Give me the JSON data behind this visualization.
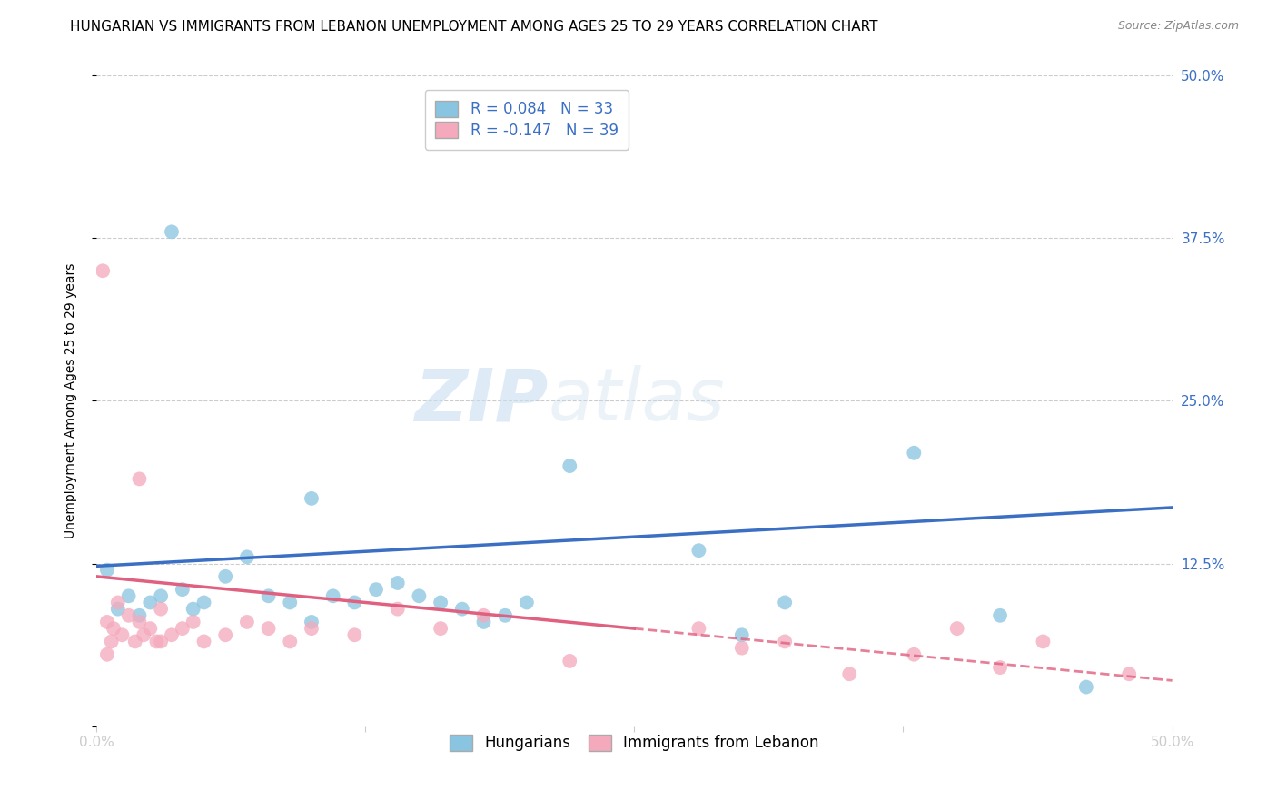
{
  "title": "HUNGARIAN VS IMMIGRANTS FROM LEBANON UNEMPLOYMENT AMONG AGES 25 TO 29 YEARS CORRELATION CHART",
  "source": "Source: ZipAtlas.com",
  "ylabel": "Unemployment Among Ages 25 to 29 years",
  "xlim": [
    0,
    0.5
  ],
  "ylim": [
    0,
    0.5
  ],
  "blue_R": 0.084,
  "blue_N": 33,
  "pink_R": -0.147,
  "pink_N": 39,
  "blue_color": "#89c4e1",
  "pink_color": "#f4a9bc",
  "blue_line_color": "#3a6fc4",
  "pink_line_color": "#e06080",
  "background_color": "#ffffff",
  "legend_label_blue": "Hungarians",
  "legend_label_pink": "Immigrants from Lebanon",
  "blue_x": [
    0.005,
    0.01,
    0.015,
    0.02,
    0.025,
    0.03,
    0.035,
    0.04,
    0.045,
    0.05,
    0.06,
    0.07,
    0.08,
    0.09,
    0.1,
    0.11,
    0.12,
    0.13,
    0.14,
    0.15,
    0.16,
    0.17,
    0.18,
    0.19,
    0.2,
    0.22,
    0.28,
    0.3,
    0.32,
    0.38,
    0.42,
    0.46,
    0.1
  ],
  "blue_y": [
    0.12,
    0.09,
    0.1,
    0.085,
    0.095,
    0.1,
    0.38,
    0.105,
    0.09,
    0.095,
    0.115,
    0.13,
    0.1,
    0.095,
    0.08,
    0.1,
    0.095,
    0.105,
    0.11,
    0.1,
    0.095,
    0.09,
    0.08,
    0.085,
    0.095,
    0.2,
    0.135,
    0.07,
    0.095,
    0.21,
    0.085,
    0.03,
    0.175
  ],
  "pink_x": [
    0.003,
    0.005,
    0.007,
    0.008,
    0.01,
    0.012,
    0.015,
    0.018,
    0.02,
    0.022,
    0.025,
    0.028,
    0.03,
    0.035,
    0.04,
    0.045,
    0.05,
    0.06,
    0.07,
    0.08,
    0.09,
    0.1,
    0.12,
    0.14,
    0.16,
    0.18,
    0.22,
    0.28,
    0.3,
    0.32,
    0.35,
    0.38,
    0.4,
    0.42,
    0.44,
    0.48,
    0.02,
    0.03,
    0.005
  ],
  "pink_y": [
    0.35,
    0.08,
    0.065,
    0.075,
    0.095,
    0.07,
    0.085,
    0.065,
    0.08,
    0.07,
    0.075,
    0.065,
    0.09,
    0.07,
    0.075,
    0.08,
    0.065,
    0.07,
    0.08,
    0.075,
    0.065,
    0.075,
    0.07,
    0.09,
    0.075,
    0.085,
    0.05,
    0.075,
    0.06,
    0.065,
    0.04,
    0.055,
    0.075,
    0.045,
    0.065,
    0.04,
    0.19,
    0.065,
    0.055
  ],
  "watermark_zip": "ZIP",
  "watermark_atlas": "atlas",
  "title_fontsize": 11,
  "axis_label_fontsize": 10,
  "tick_fontsize": 11
}
